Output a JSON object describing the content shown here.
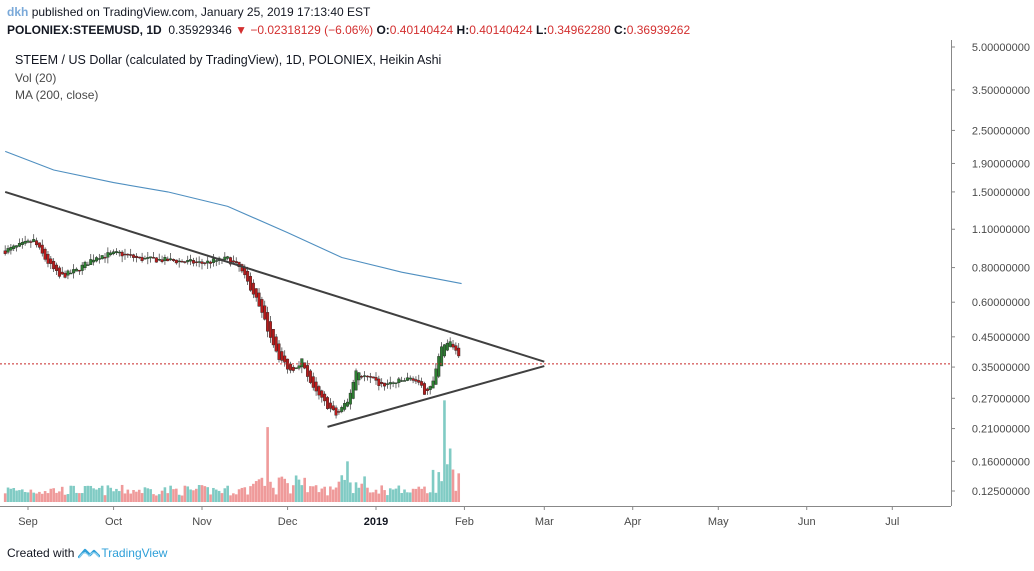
{
  "header": {
    "author": "dkh",
    "published_text": "published on TradingView.com, January 25, 2019 17:13:40 EST",
    "symbol": "POLONIEX:STEEMUSD, 1D",
    "last": "0.35929346",
    "change": "−0.02318129 (−6.06%)",
    "open_label": "O:",
    "open": "0.40140424",
    "high_label": "H:",
    "high": "0.40140424",
    "low_label": "L:",
    "low": "0.34962280",
    "close_label": "C:",
    "close": "0.36939262"
  },
  "legend": {
    "title": "STEEM / US Dollar (calculated by TradingView), 1D, POLONIEX, Heikin Ashi",
    "volume": "Vol (20)",
    "ma": "MA (200, close)"
  },
  "footer": {
    "created_with": "Created with",
    "brand": "TradingView"
  },
  "colors": {
    "up": "#2e7d32",
    "down": "#b71c1c",
    "vol_up": "#80cbc4",
    "vol_down": "#ef9a9a",
    "ma": "#4f8fc0",
    "trendline": "#404040",
    "price_line": "#c62828",
    "down_arrow": "#d32f2f"
  },
  "chart_data": {
    "type": "candlestick",
    "style": "Heikin Ashi",
    "scale": "log",
    "y_ticks": [
      "5.00000000",
      "3.50000000",
      "2.50000000",
      "1.90000000",
      "1.50000000",
      "1.10000000",
      "0.80000000",
      "0.60000000",
      "0.45000000",
      "0.35000000",
      "0.27000000",
      "0.21000000",
      "0.16000000",
      "0.12500000"
    ],
    "x_ticks": [
      "Sep",
      "Oct",
      "Nov",
      "Dec",
      "2019",
      "Feb",
      "Mar",
      "Apr",
      "May",
      "Jun",
      "Jul"
    ],
    "current_price_line": 0.3593,
    "price_keyframes": [
      [
        "2018-08-24",
        0.92
      ],
      [
        "2018-09-03",
        1.0
      ],
      [
        "2018-09-07",
        0.86
      ],
      [
        "2018-09-12",
        0.74
      ],
      [
        "2018-09-18",
        0.78
      ],
      [
        "2018-09-25",
        0.88
      ],
      [
        "2018-10-03",
        0.9
      ],
      [
        "2018-10-10",
        0.86
      ],
      [
        "2018-10-20",
        0.85
      ],
      [
        "2018-11-01",
        0.83
      ],
      [
        "2018-11-10",
        0.86
      ],
      [
        "2018-11-14",
        0.8
      ],
      [
        "2018-11-19",
        0.65
      ],
      [
        "2018-11-24",
        0.48
      ],
      [
        "2018-11-28",
        0.38
      ],
      [
        "2018-12-02",
        0.34
      ],
      [
        "2018-12-06",
        0.37
      ],
      [
        "2018-12-10",
        0.29
      ],
      [
        "2018-12-14",
        0.26
      ],
      [
        "2018-12-18",
        0.235
      ],
      [
        "2018-12-22",
        0.26
      ],
      [
        "2018-12-25",
        0.34
      ],
      [
        "2018-12-29",
        0.32
      ],
      [
        "2019-01-03",
        0.3
      ],
      [
        "2019-01-09",
        0.31
      ],
      [
        "2019-01-14",
        0.32
      ],
      [
        "2019-01-18",
        0.285
      ],
      [
        "2019-01-21",
        0.31
      ],
      [
        "2019-01-24",
        0.41
      ],
      [
        "2019-01-27",
        0.43
      ],
      [
        "2019-01-30",
        0.39
      ]
    ],
    "ma_200": [
      [
        "2018-08-24",
        2.1
      ],
      [
        "2018-09-10",
        1.8
      ],
      [
        "2018-10-01",
        1.62
      ],
      [
        "2018-10-20",
        1.5
      ],
      [
        "2018-11-10",
        1.33
      ],
      [
        "2018-12-01",
        1.07
      ],
      [
        "2018-12-20",
        0.87
      ],
      [
        "2019-01-10",
        0.77
      ],
      [
        "2019-01-31",
        0.7
      ]
    ],
    "volume_spikes": [
      [
        "2018-11-24",
        0.7
      ],
      [
        "2018-12-20",
        0.25
      ],
      [
        "2018-12-22",
        0.38
      ],
      [
        "2019-01-21",
        0.3
      ],
      [
        "2019-01-25",
        0.95
      ],
      [
        "2019-01-27",
        0.5
      ]
    ],
    "trendlines": [
      {
        "from": [
          "2018-08-24",
          1.5
        ],
        "to": [
          "2019-03-01",
          0.366
        ]
      },
      {
        "from": [
          "2018-12-15",
          0.213
        ],
        "to": [
          "2019-03-01",
          0.353
        ]
      }
    ]
  }
}
